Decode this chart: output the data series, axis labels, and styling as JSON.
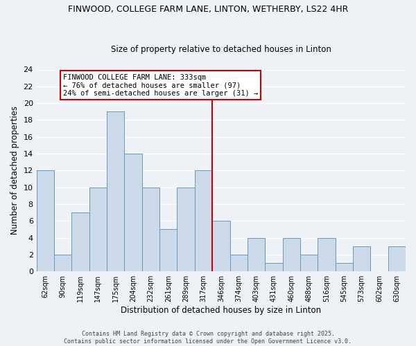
{
  "title": "FINWOOD, COLLEGE FARM LANE, LINTON, WETHERBY, LS22 4HR",
  "subtitle": "Size of property relative to detached houses in Linton",
  "xlabel": "Distribution of detached houses by size in Linton",
  "ylabel": "Number of detached properties",
  "bin_labels": [
    "62sqm",
    "90sqm",
    "119sqm",
    "147sqm",
    "175sqm",
    "204sqm",
    "232sqm",
    "261sqm",
    "289sqm",
    "317sqm",
    "346sqm",
    "374sqm",
    "403sqm",
    "431sqm",
    "460sqm",
    "488sqm",
    "516sqm",
    "545sqm",
    "573sqm",
    "602sqm",
    "630sqm"
  ],
  "bar_values": [
    12,
    2,
    7,
    10,
    19,
    14,
    10,
    5,
    10,
    12,
    6,
    2,
    4,
    1,
    4,
    2,
    4,
    1,
    3,
    0,
    3
  ],
  "bar_color": "#ccd9e8",
  "bar_edge_color": "#6699bb",
  "vline_x_index": 9.5,
  "vline_color": "#cc0000",
  "ylim": [
    0,
    24
  ],
  "yticks": [
    0,
    2,
    4,
    6,
    8,
    10,
    12,
    14,
    16,
    18,
    20,
    22,
    24
  ],
  "annotation_title": "FINWOOD COLLEGE FARM LANE: 333sqm",
  "annotation_line1": "← 76% of detached houses are smaller (97)",
  "annotation_line2": "24% of semi-detached houses are larger (31) →",
  "annotation_box_color": "#ffffff",
  "annotation_box_edge": "#cc0000",
  "footer_line1": "Contains HM Land Registry data © Crown copyright and database right 2025.",
  "footer_line2": "Contains public sector information licensed under the Open Government Licence v3.0.",
  "bg_color": "#eef2f7",
  "grid_color": "#ffffff"
}
